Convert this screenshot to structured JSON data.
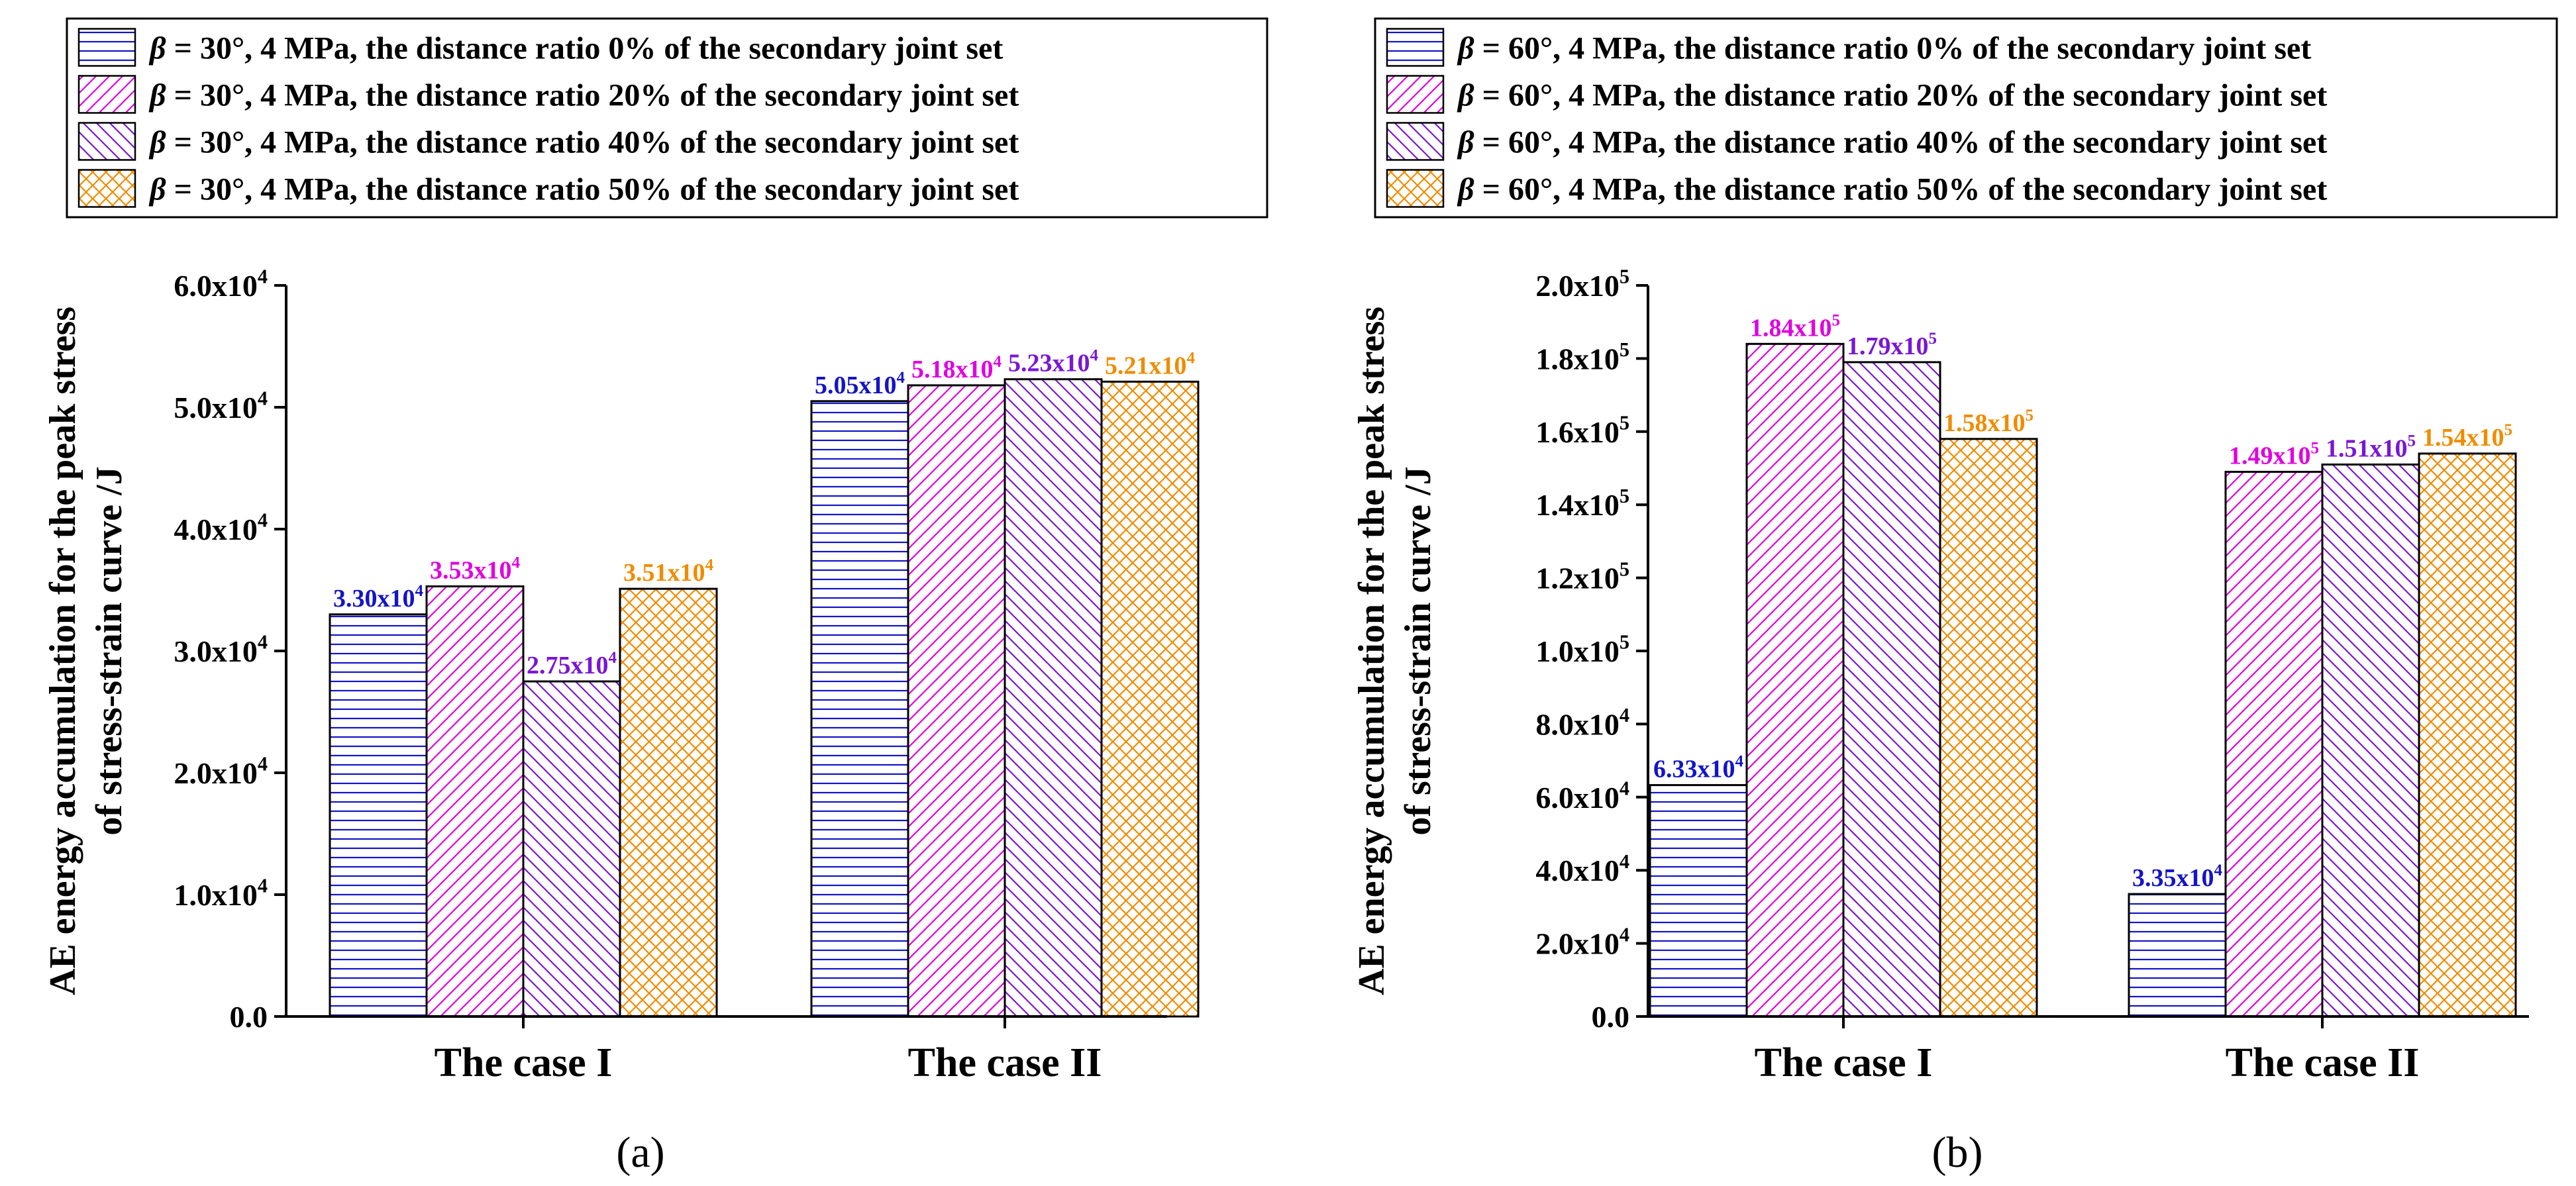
{
  "colors": {
    "blue": "#1414c8",
    "magenta": "#e000e0",
    "purple": "#7a16d6",
    "orange": "#f08c00",
    "axis": "#000000"
  },
  "chart_data": [
    {
      "panel_label": "(a)",
      "type": "bar",
      "ylabel_line1": "AE energy accumulation for the peak stress",
      "ylabel_line2": "of stress-strain curve /J",
      "categories": [
        "The case I",
        "The case II"
      ],
      "ylim": [
        0,
        60000
      ],
      "yticks": [
        {
          "value": 0,
          "base": "0.0",
          "exp": ""
        },
        {
          "value": 10000,
          "base": "1.0x10",
          "exp": "4"
        },
        {
          "value": 20000,
          "base": "2.0x10",
          "exp": "4"
        },
        {
          "value": 30000,
          "base": "3.0x10",
          "exp": "4"
        },
        {
          "value": 40000,
          "base": "4.0x10",
          "exp": "4"
        },
        {
          "value": 50000,
          "base": "5.0x10",
          "exp": "4"
        },
        {
          "value": 60000,
          "base": "6.0x10",
          "exp": "4"
        }
      ],
      "legend": [
        {
          "beta": "β",
          "text": " = 30°,  4 MPa,  the distance ratio  0%  of the secondary joint set"
        },
        {
          "beta": "β",
          "text": " = 30°,  4 MPa,  the distance ratio  20%  of the secondary joint set"
        },
        {
          "beta": "β",
          "text": " = 30°,  4 MPa,  the distance ratio  40%  of the secondary joint set"
        },
        {
          "beta": "β",
          "text": " = 30°,  4 MPa,  the distance ratio  50%  of the secondary joint set"
        }
      ],
      "series": [
        {
          "name": "0%",
          "pattern": "hlines",
          "color": "#1414c8",
          "values": [
            33000,
            50500
          ],
          "labels": [
            {
              "base": "3.30x10",
              "exp": "4"
            },
            {
              "base": "5.05x10",
              "exp": "4"
            }
          ]
        },
        {
          "name": "20%",
          "pattern": "diagR",
          "color": "#e000e0",
          "values": [
            35300,
            51800
          ],
          "labels": [
            {
              "base": "3.53x10",
              "exp": "4"
            },
            {
              "base": "5.18x10",
              "exp": "4"
            }
          ]
        },
        {
          "name": "40%",
          "pattern": "diagL",
          "color": "#7a16d6",
          "values": [
            27500,
            52300
          ],
          "labels": [
            {
              "base": "2.75x10",
              "exp": "4"
            },
            {
              "base": "5.23x10",
              "exp": "4"
            }
          ]
        },
        {
          "name": "50%",
          "pattern": "cross",
          "color": "#f08c00",
          "values": [
            35100,
            52100
          ],
          "labels": [
            {
              "base": "3.51x10",
              "exp": "4"
            },
            {
              "base": "5.21x10",
              "exp": "4"
            }
          ]
        }
      ]
    },
    {
      "panel_label": "(b)",
      "type": "bar",
      "ylabel_line1": "AE energy accumulation for the peak stress",
      "ylabel_line2": "of stress-strain curve /J",
      "categories": [
        "The case I",
        "The case II"
      ],
      "ylim": [
        0,
        200000
      ],
      "yticks": [
        {
          "value": 0,
          "base": "0.0",
          "exp": ""
        },
        {
          "value": 20000,
          "base": "2.0x10",
          "exp": "4"
        },
        {
          "value": 40000,
          "base": "4.0x10",
          "exp": "4"
        },
        {
          "value": 60000,
          "base": "6.0x10",
          "exp": "4"
        },
        {
          "value": 80000,
          "base": "8.0x10",
          "exp": "4"
        },
        {
          "value": 100000,
          "base": "1.0x10",
          "exp": "5"
        },
        {
          "value": 120000,
          "base": "1.2x10",
          "exp": "5"
        },
        {
          "value": 140000,
          "base": "1.4x10",
          "exp": "5"
        },
        {
          "value": 160000,
          "base": "1.6x10",
          "exp": "5"
        },
        {
          "value": 180000,
          "base": "1.8x10",
          "exp": "5"
        },
        {
          "value": 200000,
          "base": "2.0x10",
          "exp": "5"
        }
      ],
      "legend": [
        {
          "beta": "β",
          "text": " = 60°,  4 MPa,  the distance ratio  0%  of the secondary joint set"
        },
        {
          "beta": "β",
          "text": " = 60°,  4 MPa,  the distance ratio  20% of the secondary joint set"
        },
        {
          "beta": "β",
          "text": " = 60°,  4 MPa,  the distance ratio  40% of the secondary joint set"
        },
        {
          "beta": "β",
          "text": " = 60°,  4 MPa,  the distance ratio  50% of the secondary joint set"
        }
      ],
      "series": [
        {
          "name": "0%",
          "pattern": "hlines",
          "color": "#1414c8",
          "values": [
            63300,
            33500
          ],
          "labels": [
            {
              "base": "6.33x10",
              "exp": "4"
            },
            {
              "base": "3.35x10",
              "exp": "4"
            }
          ]
        },
        {
          "name": "20%",
          "pattern": "diagR",
          "color": "#e000e0",
          "values": [
            184000,
            149000
          ],
          "labels": [
            {
              "base": "1.84x10",
              "exp": "5"
            },
            {
              "base": "1.49x10",
              "exp": "5"
            }
          ]
        },
        {
          "name": "40%",
          "pattern": "diagL",
          "color": "#7a16d6",
          "values": [
            179000,
            151000
          ],
          "labels": [
            {
              "base": "1.79x10",
              "exp": "5"
            },
            {
              "base": "1.51x10",
              "exp": "5"
            }
          ]
        },
        {
          "name": "50%",
          "pattern": "cross",
          "color": "#f08c00",
          "values": [
            158000,
            154000
          ],
          "labels": [
            {
              "base": "1.58x10",
              "exp": "5"
            },
            {
              "base": "1.54x10",
              "exp": "5"
            }
          ]
        }
      ]
    }
  ]
}
